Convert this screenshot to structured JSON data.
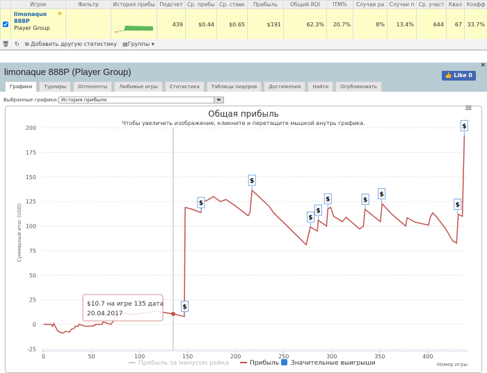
{
  "table": {
    "headers": [
      "",
      "Игрок",
      "Фильтр",
      "История прибы",
      "Подсчет",
      "Ср. прибы",
      "Ср. ставк",
      "Прибыль",
      "Общий ROI",
      "ITM%",
      "Случаи ра",
      "Случаи п",
      "Ср. участ",
      "Квал",
      "Коэфф"
    ],
    "row": {
      "checked": true,
      "player": "limonaque 888P",
      "group": "Player Group",
      "filter": "",
      "values": [
        "439",
        "$0.44",
        "$0.65",
        "$191",
        "62.3%",
        "20.7%",
        "8%",
        "13.4%",
        "644",
        "67",
        "33.7%"
      ]
    }
  },
  "toolbar": {
    "add_label": "Добавить другую статистику",
    "groups_label": "Группы"
  },
  "dialog": {
    "title": "limonaque 888P (Player Group)",
    "like_label": "Like 0",
    "close": "×",
    "tabs": [
      {
        "label": "Графики",
        "active": true
      },
      {
        "label": "Турниры"
      },
      {
        "label": "Оппоненты"
      },
      {
        "label": "Любимые игры"
      },
      {
        "label": "Статистика"
      },
      {
        "label": "Таблицы лидеров"
      },
      {
        "label": "Достижения"
      },
      {
        "label": "Найти"
      },
      {
        "label": "Опубликовать"
      }
    ],
    "selected_label": "Выбранные графики:",
    "selected_value": "История прибыли"
  },
  "chart_data": {
    "type": "line",
    "title": "Общая прибыль",
    "subtitle": "Чтобы увеличить изображение, кликните и перетащите мышкой внутрь графика.",
    "xlabel": "Номер игры",
    "ylabel": "Суммарный итог (USD)",
    "xlim": [
      0,
      445
    ],
    "ylim": [
      -25,
      200
    ],
    "xticks": [
      0,
      50,
      100,
      150,
      200,
      250,
      300,
      350,
      400
    ],
    "yticks": [
      -25,
      0,
      25,
      50,
      75,
      100,
      125,
      150,
      175,
      200
    ],
    "grid": "horizontal dotted",
    "legend": {
      "placement": "bottom",
      "entries": [
        {
          "name": "Прибыль за минусом рейка",
          "color": "#cccccc",
          "hidden": true
        },
        {
          "name": "Прибыль",
          "color": "#c0504d"
        },
        {
          "name": "Значительные выигрыши",
          "color": "#2f7ed8"
        }
      ]
    },
    "series": [
      {
        "name": "Прибыль",
        "color": "#c0504d",
        "points": [
          [
            0,
            0
          ],
          [
            8,
            0
          ],
          [
            9.5,
            -2
          ],
          [
            10.6,
            1
          ],
          [
            15,
            -7
          ],
          [
            20,
            -9
          ],
          [
            23,
            -7
          ],
          [
            27,
            -8
          ],
          [
            29,
            -5
          ],
          [
            32,
            -4
          ],
          [
            33,
            -2
          ],
          [
            36,
            -2
          ],
          [
            37,
            0
          ],
          [
            44,
            -2
          ],
          [
            53,
            -1.5
          ],
          [
            54,
            0
          ],
          [
            61,
            0
          ],
          [
            62,
            2.5
          ],
          [
            70,
            0
          ],
          [
            72.5,
            3
          ],
          [
            75,
            11
          ],
          [
            85,
            11
          ],
          [
            95,
            10
          ],
          [
            100,
            11
          ],
          [
            110,
            12
          ],
          [
            115,
            13.5
          ],
          [
            126,
            12
          ],
          [
            135,
            10.7
          ],
          [
            146.6,
            8
          ],
          [
            147.4,
            119
          ],
          [
            155,
            117
          ],
          [
            164,
            113.7
          ],
          [
            164.5,
            125
          ],
          [
            170,
            126
          ],
          [
            177,
            130
          ],
          [
            184,
            125
          ],
          [
            190,
            127
          ],
          [
            198.5,
            121.5
          ],
          [
            213,
            110.5
          ],
          [
            215,
            114
          ],
          [
            217,
            136.4
          ],
          [
            223,
            131
          ],
          [
            235,
            120
          ],
          [
            240,
            113
          ],
          [
            259,
            95
          ],
          [
            273.4,
            81
          ],
          [
            277.7,
            99
          ],
          [
            285,
            95
          ],
          [
            286,
            106
          ],
          [
            294.6,
            100
          ],
          [
            296,
            117.5
          ],
          [
            299,
            119
          ],
          [
            302,
            110
          ],
          [
            311,
            104.5
          ],
          [
            315,
            109
          ],
          [
            329,
            97
          ],
          [
            333,
            100
          ],
          [
            334.7,
            117
          ],
          [
            350.6,
            104.5
          ],
          [
            352.5,
            122.7
          ],
          [
            362.6,
            112
          ],
          [
            377,
            100
          ],
          [
            378.6,
            108.4
          ],
          [
            386.8,
            104
          ],
          [
            400.8,
            101
          ],
          [
            402.5,
            108.7
          ],
          [
            405,
            113.5
          ],
          [
            408.6,
            110
          ],
          [
            418,
            98
          ],
          [
            426,
            85
          ],
          [
            430,
            82.7
          ],
          [
            431.7,
            112
          ],
          [
            436,
            110
          ],
          [
            438,
            192
          ]
        ]
      }
    ],
    "flags": {
      "label": "$",
      "x": [
        147,
        164,
        217,
        278,
        286,
        296,
        335,
        352,
        431,
        438
      ]
    },
    "tooltip": {
      "x": 135,
      "y": 10.7,
      "line1": "$10.7 на игре 135 дата",
      "line2": "20.04.2017"
    }
  },
  "colors": {
    "accent": "#1b5fb0",
    "dialog_bg": "#b8ccd4",
    "row_highlight": "#fdfdc8"
  }
}
